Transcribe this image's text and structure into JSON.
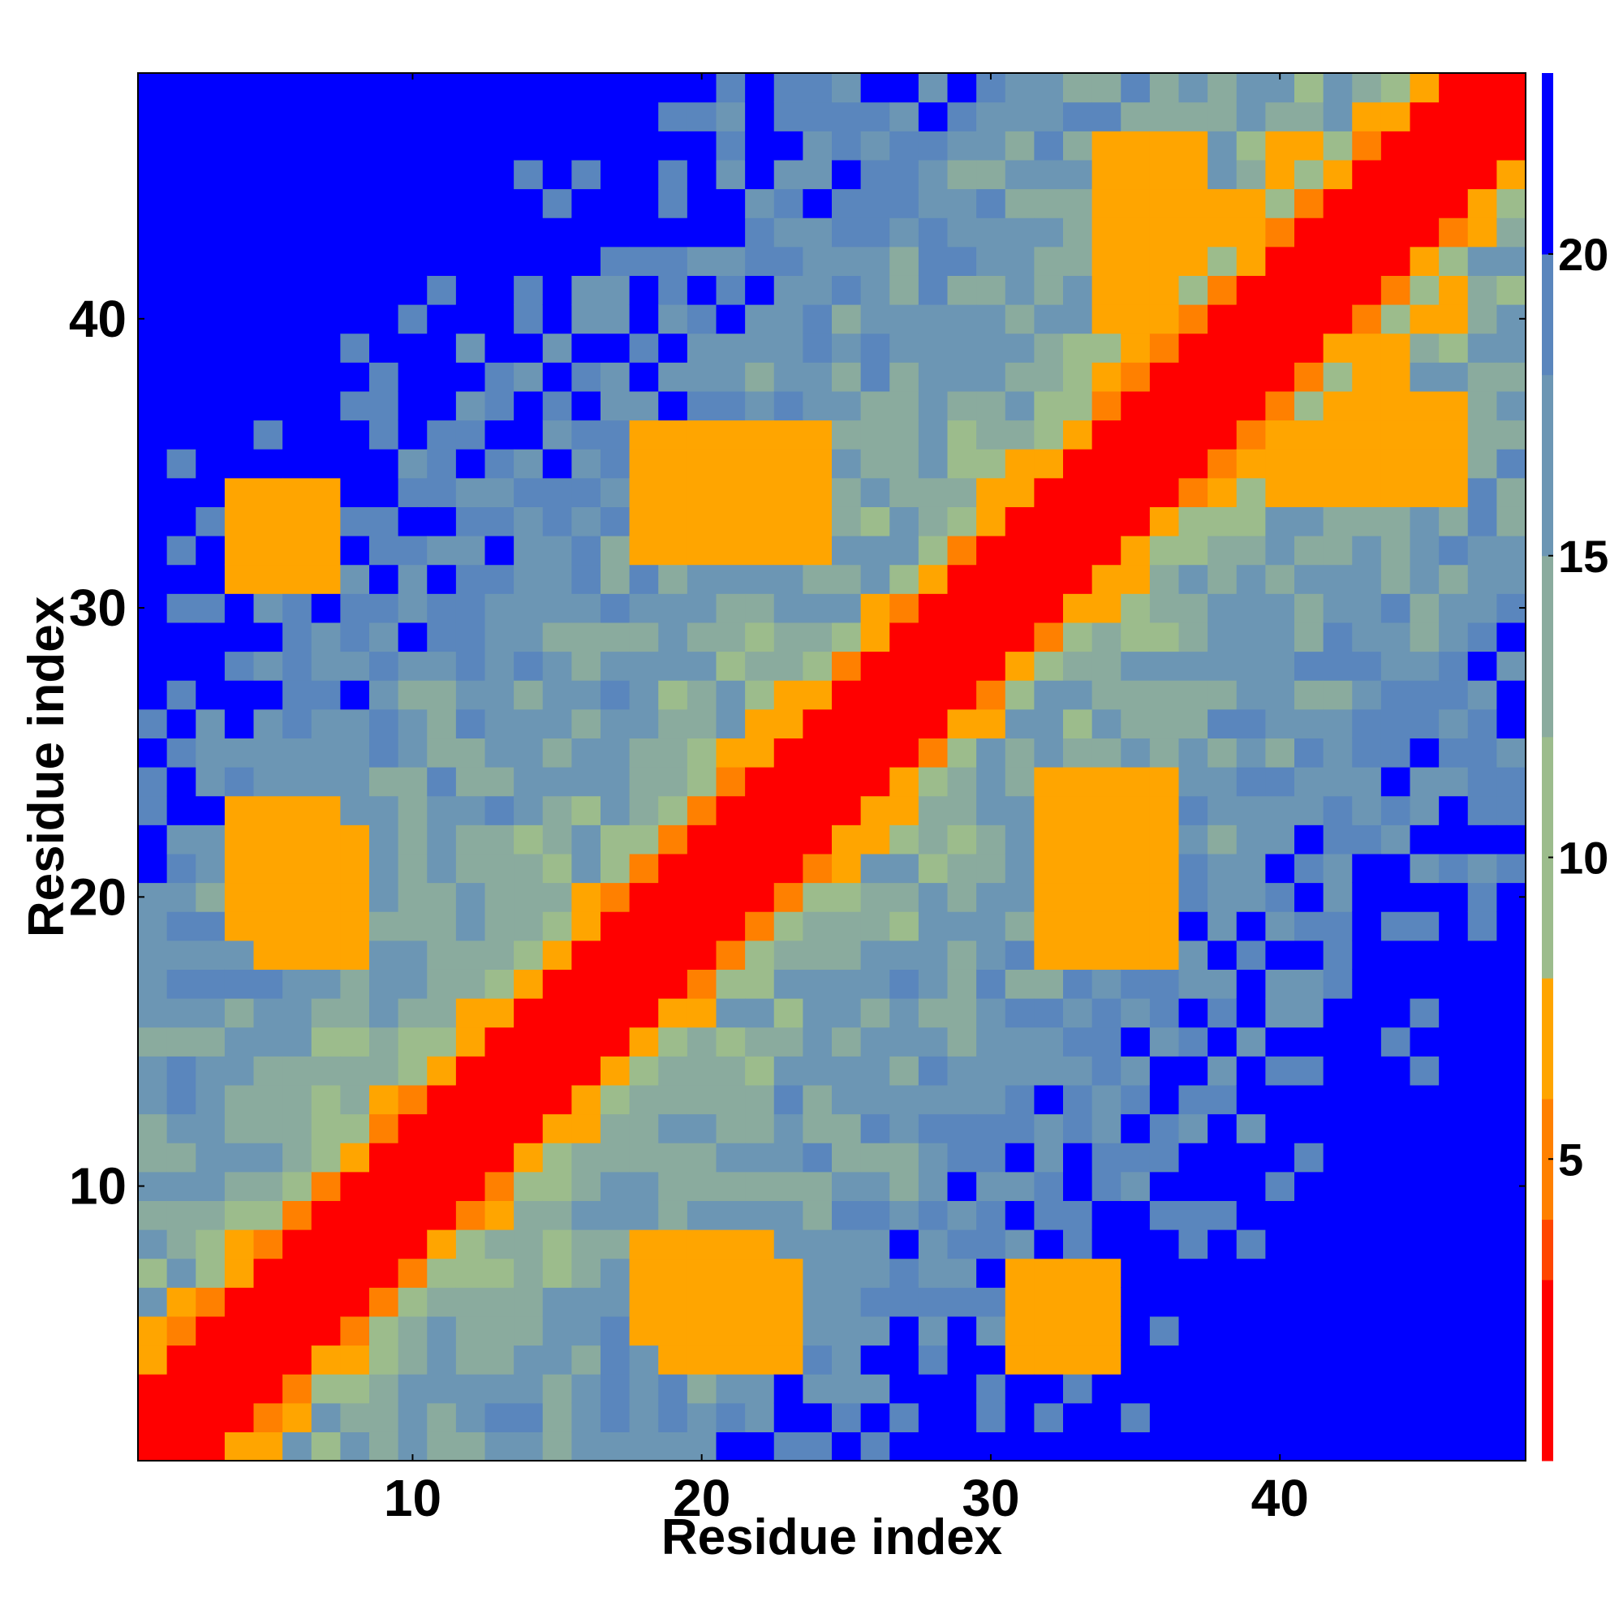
{
  "chart_data": {
    "type": "heatmap",
    "title": "",
    "xlabel": "Residue index",
    "ylabel": "Residue index",
    "x_range": [
      0.5,
      48.5
    ],
    "y_range": [
      0.5,
      48.5
    ],
    "n_residues": 48,
    "x_ticks": [
      10,
      20,
      30,
      40
    ],
    "y_ticks": [
      10,
      20,
      30,
      40
    ],
    "colorbar": {
      "ticks": [
        5,
        10,
        15,
        20
      ],
      "range": [
        0,
        23
      ],
      "scale": [
        {
          "upper": 3,
          "color": "#ff0000"
        },
        {
          "upper": 4,
          "color": "#ff4500"
        },
        {
          "upper": 6,
          "color": "#ff8000"
        },
        {
          "upper": 8,
          "color": "#ffa500"
        },
        {
          "upper": 12,
          "color": "#9cbc8c"
        },
        {
          "upper": 15,
          "color": "#8aab9e"
        },
        {
          "upper": 18,
          "color": "#6c96b4"
        },
        {
          "upper": 20,
          "color": "#5a86bd"
        },
        {
          "upper": 23,
          "color": "#0000ff"
        }
      ]
    },
    "pattern_notes": {
      "diagonal": "red band |i-j|<=2, orange/red-orange to |i-j|~4",
      "far_blue_corners": "blue (>20) in regions far from diagonal",
      "secondary_contacts": [
        {
          "x": [
            4,
            7
          ],
          "y": [
            31,
            34
          ],
          "value": 6
        },
        {
          "x": [
            5,
            8
          ],
          "y": [
            18,
            22
          ],
          "value": 6
        },
        {
          "x": [
            18,
            22
          ],
          "y": [
            32,
            36
          ],
          "value": 6
        },
        {
          "x": [
            19,
            23
          ],
          "y": [
            4,
            7
          ],
          "value": 6
        },
        {
          "x": [
            32,
            36
          ],
          "y": [
            18,
            24
          ],
          "value": 6
        },
        {
          "x": [
            31,
            34
          ],
          "y": [
            4,
            7
          ],
          "value": 6
        },
        {
          "x": [
            40,
            44
          ],
          "y": [
            35,
            46
          ],
          "value": 6
        },
        {
          "x": [
            34,
            37
          ],
          "y": [
            40,
            46
          ],
          "value": 6
        }
      ]
    }
  }
}
